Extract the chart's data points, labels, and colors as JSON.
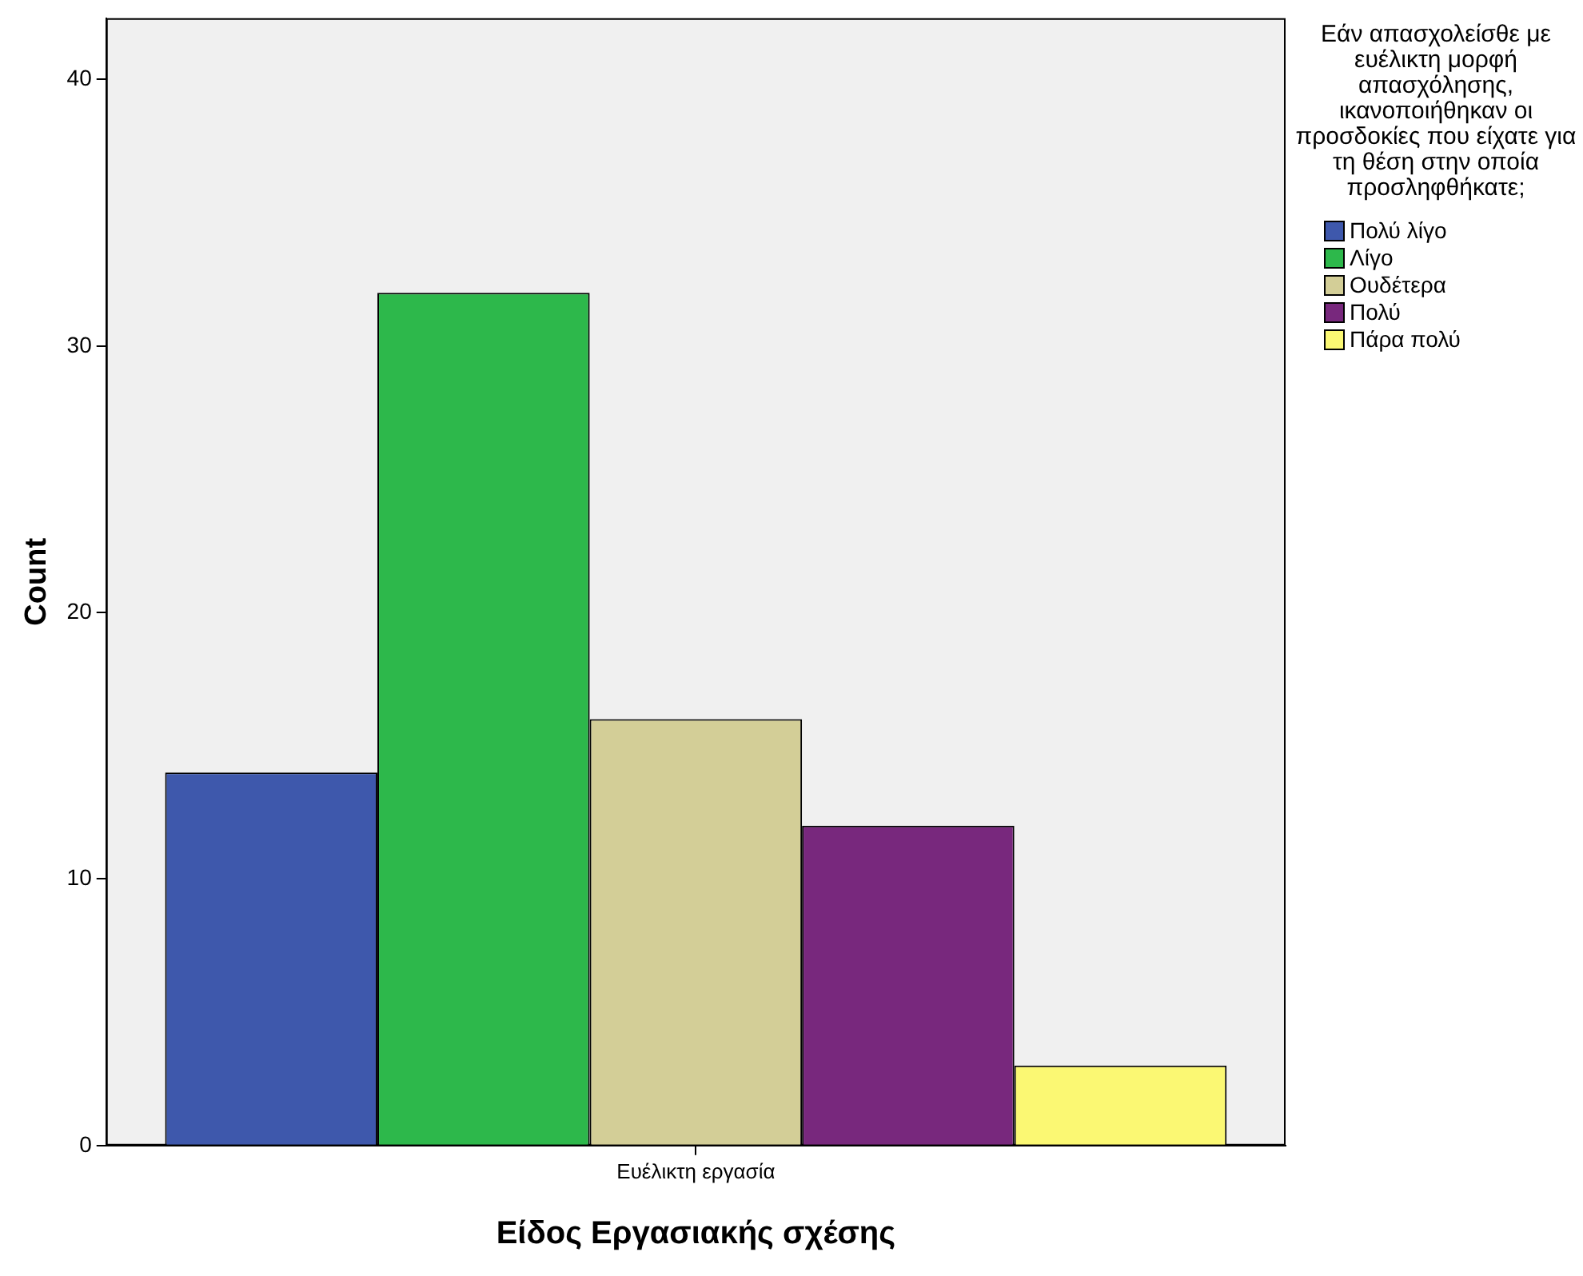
{
  "chart_data": {
    "type": "bar",
    "xlabel": "Είδος Εργασιακής σχέσης",
    "ylabel": "Count",
    "legend_title": "Εάν απασχολείσθε με ευέλικτη μορφή απασχόλησης, ικανοποιήθηκαν οι προσδοκίες που είχατε για τη θέση στην οποία προσληφθήκατε;",
    "categories": [
      "Ευέλικτη εργασία"
    ],
    "series": [
      {
        "name": "Πολύ λίγο",
        "color": "#3e58ac",
        "values": [
          14
        ]
      },
      {
        "name": "Λίγο",
        "color": "#2db84b",
        "values": [
          32
        ]
      },
      {
        "name": "Ουδέτερα",
        "color": "#d3ce97",
        "values": [
          16
        ]
      },
      {
        "name": "Πολύ",
        "color": "#78287d",
        "values": [
          12
        ]
      },
      {
        "name": "Πάρα πολύ",
        "color": "#fbf873",
        "values": [
          3
        ]
      }
    ],
    "ylim": [
      0,
      42.3
    ],
    "yticks": [
      0,
      10,
      20,
      30,
      40
    ],
    "grid": false,
    "legend": "top right"
  }
}
